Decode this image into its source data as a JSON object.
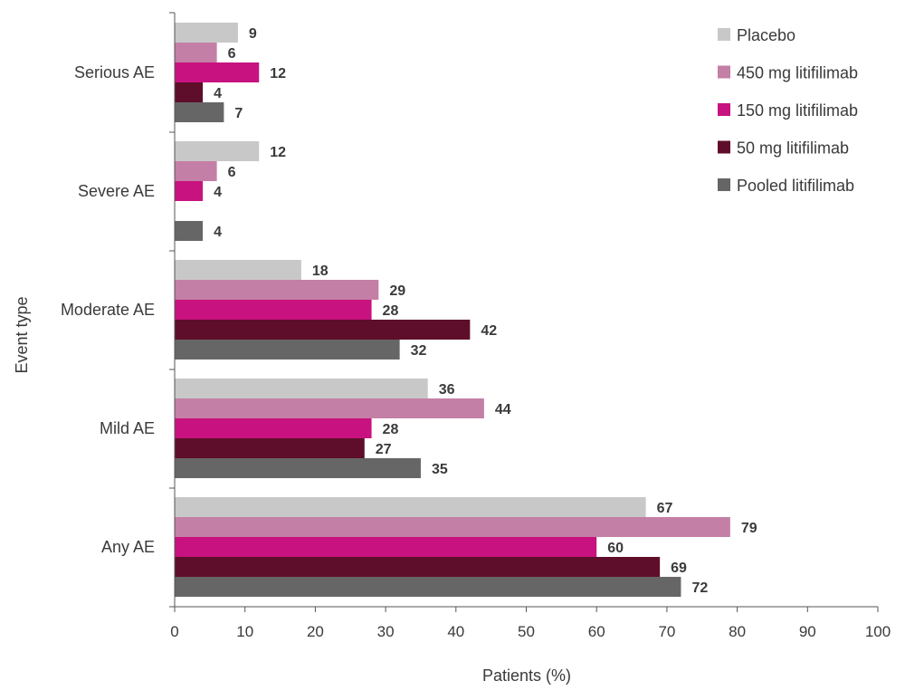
{
  "chart_data": {
    "type": "bar",
    "orientation": "horizontal",
    "title": "",
    "xlabel": "Patients (%)",
    "ylabel": "Event type",
    "xlim": [
      0,
      100
    ],
    "xticks": [
      0,
      10,
      20,
      30,
      40,
      50,
      60,
      70,
      80,
      90,
      100
    ],
    "grid": false,
    "legend_position": "top-right",
    "categories": [
      "Serious AE",
      "Severe AE",
      "Moderate AE",
      "Mild AE",
      "Any AE"
    ],
    "series": [
      {
        "name": "Placebo",
        "color": "#c8c8c8",
        "values": [
          9,
          12,
          18,
          36,
          67
        ]
      },
      {
        "name": "450 mg litifilimab",
        "color": "#c47fa6",
        "values": [
          6,
          6,
          29,
          44,
          79
        ]
      },
      {
        "name": "150 mg litifilimab",
        "color": "#c8127f",
        "values": [
          12,
          4,
          28,
          28,
          60
        ]
      },
      {
        "name": "50 mg litifilimab",
        "color": "#5e0e2b",
        "values": [
          4,
          null,
          42,
          27,
          69
        ]
      },
      {
        "name": "Pooled litifilimab",
        "color": "#666666",
        "values": [
          7,
          4,
          32,
          35,
          72
        ]
      }
    ]
  }
}
